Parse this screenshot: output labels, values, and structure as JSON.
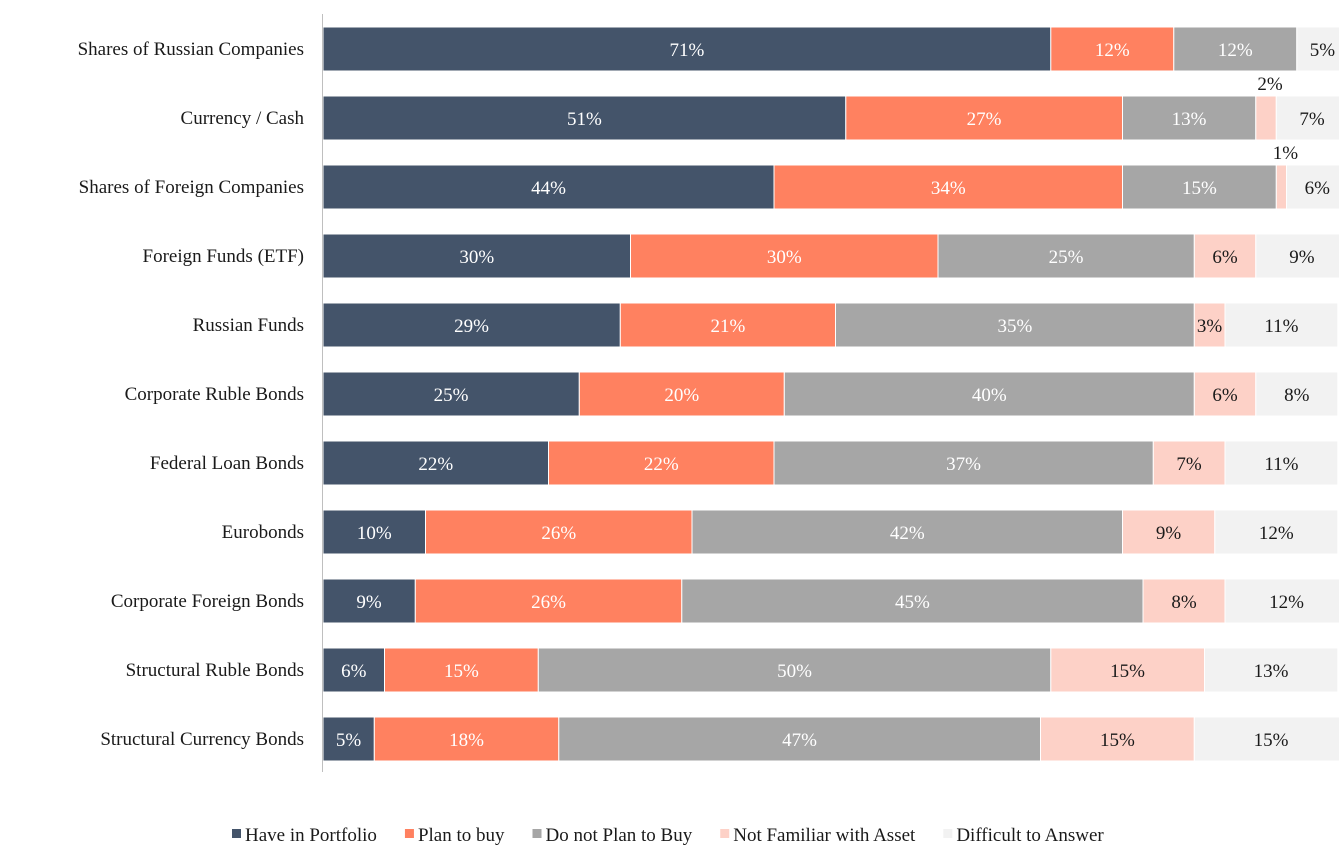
{
  "chart_data": {
    "type": "bar",
    "orientation": "horizontal",
    "stacked": true,
    "categories": [
      "Shares of Russian Companies",
      "Currency / Cash",
      "Shares of Foreign Companies",
      "Foreign Funds (ETF)",
      "Russian Funds",
      "Corporate Ruble Bonds",
      "Federal Loan Bonds",
      "Eurobonds",
      "Corporate Foreign Bonds",
      "Structural Ruble Bonds",
      "Structural Currency Bonds"
    ],
    "series": [
      {
        "name": "Have in Portfolio",
        "color": "#44546a",
        "label_color": "#ffffff",
        "values": [
          71,
          51,
          44,
          30,
          29,
          25,
          22,
          10,
          9,
          6,
          5
        ]
      },
      {
        "name": "Plan to buy",
        "color": "#ff8160",
        "label_color": "#ffffff",
        "values": [
          12,
          27,
          34,
          30,
          21,
          20,
          22,
          26,
          26,
          15,
          18
        ]
      },
      {
        "name": "Do not Plan to Buy",
        "color": "#a6a6a6",
        "label_color": "#ffffff",
        "values": [
          12,
          13,
          15,
          25,
          35,
          40,
          37,
          42,
          45,
          50,
          47
        ]
      },
      {
        "name": "Not Familiar with Asset",
        "color": "#fdd1c7",
        "label_color": "#1a1a1a",
        "values": [
          null,
          2,
          1,
          6,
          3,
          6,
          7,
          9,
          8,
          15,
          15
        ]
      },
      {
        "name": "Difficult to Answer",
        "color": "#f2f2f2",
        "label_color": "#1a1a1a",
        "values": [
          5,
          7,
          6,
          9,
          11,
          8,
          11,
          12,
          12,
          13,
          15
        ]
      }
    ],
    "value_suffix": "%",
    "title": "",
    "xlabel": "",
    "ylabel": "",
    "xlim": [
      0,
      100
    ],
    "grid": false,
    "legend": "bottom"
  }
}
